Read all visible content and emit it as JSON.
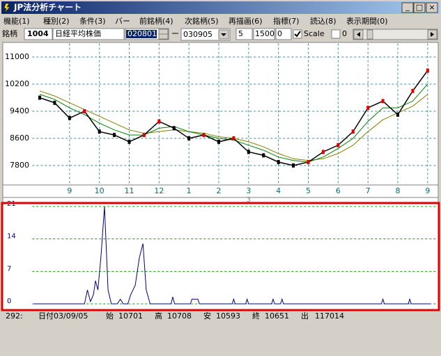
{
  "window": {
    "title": "JP法分析チャート",
    "buttons": [
      "_",
      "□",
      "×"
    ]
  },
  "menu": [
    "機能(1)",
    "種別(2)",
    "条件(3)",
    "バー",
    "前銘柄(4)",
    "次銘柄(5)",
    "再描画(6)",
    "指標(7)",
    "読込(8)",
    "表示期間(0)"
  ],
  "toolbar": {
    "label": "銘柄",
    "code": "1004",
    "name": "日経平均株価",
    "start": "020801",
    "dash": "ー",
    "end": "030905",
    "field1": "5",
    "field2": "1500",
    "field3": "0",
    "scale_label": "Scale",
    "scale_checked": true,
    "check2_label": "0",
    "check2_checked": false
  },
  "chart_data": [
    {
      "type": "line",
      "x": [
        0,
        0.5,
        1,
        1.5,
        2,
        2.5,
        3,
        3.5,
        4,
        4.5,
        5,
        5.5,
        6,
        6.5,
        7,
        7.5,
        8,
        8.5,
        9,
        9.5,
        10,
        10.5,
        11,
        11.5,
        12,
        12.5,
        13
      ],
      "series": [
        {
          "color": "#000000",
          "values": [
            9800,
            9650,
            9200,
            9400,
            8800,
            8700,
            8500,
            8700,
            9100,
            8900,
            8600,
            8700,
            8500,
            8600,
            8200,
            8100,
            7900,
            7800,
            7900,
            8200,
            8400,
            8800,
            9500,
            9700,
            9300,
            10000,
            10600
          ]
        },
        {
          "color": "#008000",
          "values": [
            9900,
            9750,
            9500,
            9300,
            9050,
            8850,
            8700,
            8700,
            8900,
            8950,
            8800,
            8700,
            8600,
            8550,
            8400,
            8250,
            8050,
            7950,
            7900,
            8050,
            8300,
            8600,
            9100,
            9500,
            9500,
            9700,
            10200
          ]
        },
        {
          "color": "#808000",
          "values": [
            10000,
            9850,
            9650,
            9450,
            9250,
            9050,
            8850,
            8750,
            8800,
            8850,
            8800,
            8750,
            8650,
            8600,
            8500,
            8350,
            8150,
            8000,
            7950,
            8000,
            8150,
            8400,
            8800,
            9150,
            9350,
            9550,
            9900
          ]
        }
      ],
      "xlim": [
        -0.25,
        13.3
      ],
      "xticks": [
        {
          "value": 1,
          "label": "9"
        },
        {
          "value": 2,
          "label": "10"
        },
        {
          "value": 3,
          "label": "11"
        },
        {
          "value": 4,
          "label": "12"
        },
        {
          "value": 5,
          "label": "1"
        },
        {
          "value": 6,
          "label": "2"
        },
        {
          "value": 7,
          "label": "3"
        },
        {
          "value": 8,
          "label": "4"
        },
        {
          "value": 9,
          "label": "5"
        },
        {
          "value": 10,
          "label": "6"
        },
        {
          "value": 11,
          "label": "7"
        },
        {
          "value": 12,
          "label": "8"
        },
        {
          "value": 13,
          "label": "9"
        }
      ],
      "year_label": "3",
      "ylim": [
        7400,
        11400
      ],
      "yticks": [
        7800,
        8600,
        9400,
        10200,
        11000
      ],
      "grid": true,
      "xgrid": true,
      "grid_color": "#3a8a9a"
    },
    {
      "type": "line",
      "x": [
        -0.2,
        1.5,
        1.6,
        1.7,
        1.8,
        1.87,
        1.95,
        2.05,
        2.17,
        2.29,
        2.4,
        2.6,
        2.7,
        2.8,
        2.95,
        3.05,
        3.2,
        3.34,
        3.46,
        3.57,
        3.7,
        4.4,
        4.46,
        4.52,
        5.05,
        5.1,
        5.3,
        5.35,
        6.45,
        6.5,
        6.55,
        6.9,
        6.95,
        7.0,
        7.77,
        7.82,
        7.87,
        8.07,
        8.12,
        8.17,
        11.45,
        11.5,
        11.55,
        12.35,
        12.4,
        12.45,
        13.1
      ],
      "series": [
        {
          "color": "#000080",
          "values": [
            0,
            0,
            3,
            0.5,
            2,
            5,
            3,
            10,
            21,
            3,
            0,
            0,
            1,
            0,
            0,
            2,
            4,
            10,
            13,
            3,
            0,
            0,
            1.5,
            0,
            0,
            1,
            1,
            0,
            0,
            1,
            0,
            0,
            1,
            0,
            0,
            1,
            0,
            0,
            1,
            0,
            0,
            1,
            0,
            0,
            1,
            0,
            0
          ]
        }
      ],
      "xlim": [
        -0.25,
        13.3
      ],
      "ylim": [
        0,
        21
      ],
      "yticks": [
        0,
        7,
        14,
        21
      ],
      "grid": true,
      "xgrid": false,
      "grid_color": "#00a000"
    }
  ],
  "status": [
    "292:",
    "日付03/09/05",
    "始",
    "10701",
    "高",
    "10708",
    "安",
    "10593",
    "終",
    "10651",
    "出",
    "117014"
  ]
}
